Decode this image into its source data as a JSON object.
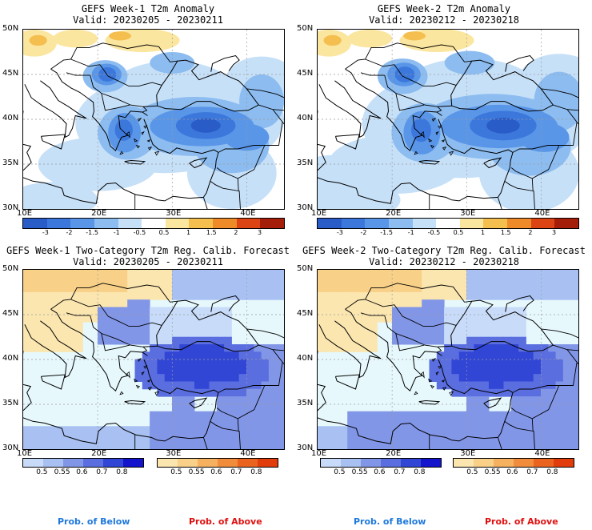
{
  "panels": [
    {
      "title": "GEFS Week-1 T2m Anomaly",
      "valid": "Valid: 20230205 - 20230211"
    },
    {
      "title": "GEFS Week-2 T2m Anomaly",
      "valid": "Valid: 20230212 - 20230218"
    },
    {
      "title": "GEFS Week-1 Two-Category T2m Reg. Calib. Forecast",
      "valid": "Valid: 20230205 - 20230211"
    },
    {
      "title": "GEFS Week-2 Two-Category T2m Reg. Calib. Forecast",
      "valid": "Valid: 20230212 - 20230218"
    }
  ],
  "lat_labels": [
    "50N",
    "45N",
    "40N",
    "35N",
    "30N"
  ],
  "lon_labels": [
    "10E",
    "20E",
    "30E",
    "40E"
  ],
  "anomaly_colorbar": {
    "labels": [
      "-3",
      "-2",
      "-1.5",
      "-1",
      "-0.5",
      "0.5",
      "1",
      "1.5",
      "2",
      "3"
    ],
    "colors": [
      "#2a5cc8",
      "#3c78dc",
      "#5a96e8",
      "#8cbcf0",
      "#c6e0f8",
      "#ffffff",
      "#fbe6a0",
      "#f5bf50",
      "#ee8a28",
      "#dc4414",
      "#a51e0a"
    ]
  },
  "prob_colorbar_below": {
    "labels": [
      "0.5",
      "0.55",
      "0.6",
      "0.7",
      "0.8"
    ],
    "colors": [
      "#c8dcfa",
      "#a8c0f2",
      "#8296e8",
      "#5a6ee0",
      "#3246d6",
      "#1414cc"
    ]
  },
  "prob_colorbar_above": {
    "labels": [
      "0.5",
      "0.55",
      "0.6",
      "0.7",
      "0.8"
    ],
    "colors": [
      "#fbe6b0",
      "#f8d088",
      "#f5b060",
      "#f08c3c",
      "#ea6420",
      "#e03c0c"
    ]
  },
  "legend": {
    "below": "Prob. of Below",
    "above": "Prob. of Above",
    "below_color": "#1e78dc",
    "above_color": "#e01010"
  }
}
